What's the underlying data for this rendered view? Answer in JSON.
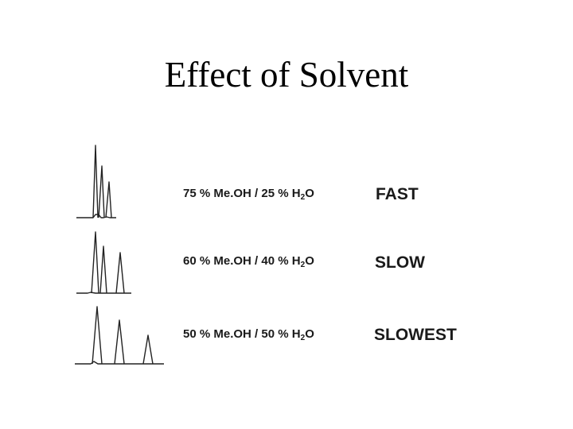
{
  "title": "Effect of Solvent",
  "rows": [
    {
      "meoh": "75",
      "water": "25",
      "speed": "FAST",
      "peaks": 3
    },
    {
      "meoh": "60",
      "water": "40",
      "speed": "SLOW",
      "peaks": 3
    },
    {
      "meoh": "50",
      "water": "50",
      "speed": "SLOWEST",
      "peaks": 3
    }
  ],
  "text": {
    "pct": " % ",
    "meoh": "Me.OH",
    "sep": " / ",
    "h": "H",
    "two": "2",
    "o": "O"
  }
}
